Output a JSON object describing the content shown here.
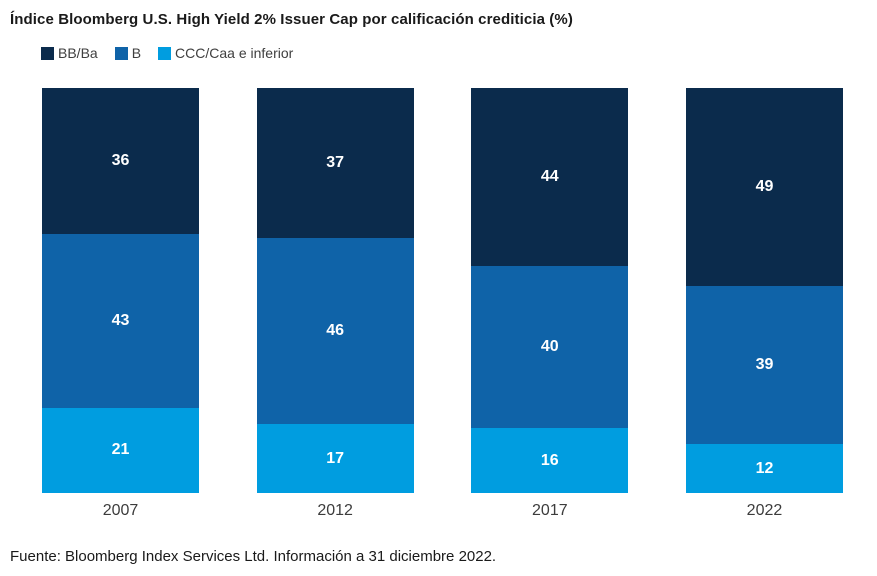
{
  "title": "Índice Bloomberg U.S. High Yield 2% Issuer Cap por calificación crediticia (%)",
  "footer": "Fuente: Bloomberg Index Services Ltd. Información a 31 diciembre 2022.",
  "legend": [
    {
      "label": "BB/Ba",
      "color": "#0b2b4c"
    },
    {
      "label": "B",
      "color": "#0f63a8"
    },
    {
      "label": "CCC/Caa e inferior",
      "color": "#009de0"
    }
  ],
  "chart_data": {
    "type": "bar",
    "stacked": true,
    "title": "Índice Bloomberg U.S. High Yield 2% Issuer Cap por calificación crediticia (%)",
    "categories": [
      "2007",
      "2012",
      "2017",
      "2022"
    ],
    "series": [
      {
        "name": "BB/Ba",
        "color": "#0b2b4c",
        "values": [
          36,
          37,
          44,
          49
        ]
      },
      {
        "name": "B",
        "color": "#0f63a8",
        "values": [
          43,
          46,
          40,
          39
        ]
      },
      {
        "name": "CCC/Caa e inferior",
        "color": "#009de0",
        "values": [
          21,
          17,
          16,
          12
        ]
      }
    ],
    "xlabel": "",
    "ylabel": "",
    "ylim": [
      0,
      100
    ],
    "grid": false,
    "axes_visible": false,
    "value_labels": true,
    "value_label_color": "#ffffff",
    "legend_position": "top-left"
  },
  "colors": {
    "background": "#ffffff",
    "title_text": "#1a1a1a",
    "legend_text": "#3f3f3f",
    "category_text": "#3c3c3c",
    "footer_text": "#1a1a1a"
  }
}
